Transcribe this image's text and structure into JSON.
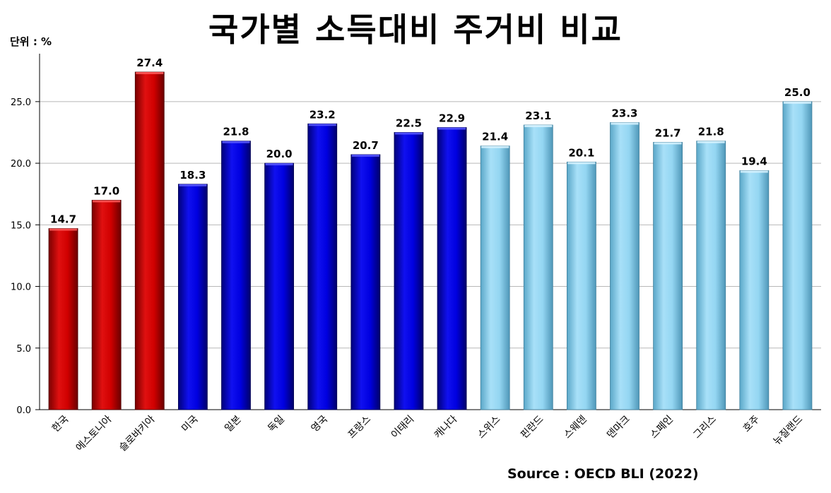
{
  "title": "국가별 소득대비 주거비 비교",
  "unit_label": "단위 : %",
  "source": "Source : OECD BLI (2022)",
  "chart_data": {
    "type": "bar",
    "title": "국가별 소득대비 주거비 비교",
    "xlabel": "",
    "ylabel": "",
    "ylim": [
      0,
      27.4
    ],
    "yticks": [
      0.0,
      5.0,
      10.0,
      15.0,
      20.0,
      25.0
    ],
    "ytick_labels": [
      "0.0",
      "5.0",
      "10.0",
      "15.0",
      "20.0",
      "25.0"
    ],
    "grid": true,
    "categories": [
      "한국",
      "에스토니아",
      "슬로바키아",
      "미국",
      "일본",
      "독일",
      "영국",
      "프랑스",
      "이태리",
      "캐나다",
      "스위스",
      "핀란드",
      "스웨덴",
      "덴마크",
      "스페인",
      "그리스",
      "호주",
      "뉴질랜드"
    ],
    "values": [
      14.7,
      17.0,
      27.4,
      18.3,
      21.8,
      20.0,
      23.2,
      20.7,
      22.5,
      22.9,
      21.4,
      23.1,
      20.1,
      23.3,
      21.7,
      21.8,
      19.4,
      25.0
    ],
    "value_labels": [
      "14.7",
      "17.0",
      "27.4",
      "18.3",
      "21.8",
      "20.0",
      "23.2",
      "20.7",
      "22.5",
      "22.9",
      "21.4",
      "23.1",
      "20.1",
      "23.3",
      "21.7",
      "21.8",
      "19.4",
      "25.0"
    ],
    "bar_colors": [
      "#cc0000",
      "#cc0000",
      "#cc0000",
      "#0000dd",
      "#0000dd",
      "#0000dd",
      "#0000dd",
      "#0000dd",
      "#0000dd",
      "#0000dd",
      "#87ceeb",
      "#87ceeb",
      "#87ceeb",
      "#87ceeb",
      "#87ceeb",
      "#87ceeb",
      "#87ceeb",
      "#87ceeb"
    ]
  }
}
